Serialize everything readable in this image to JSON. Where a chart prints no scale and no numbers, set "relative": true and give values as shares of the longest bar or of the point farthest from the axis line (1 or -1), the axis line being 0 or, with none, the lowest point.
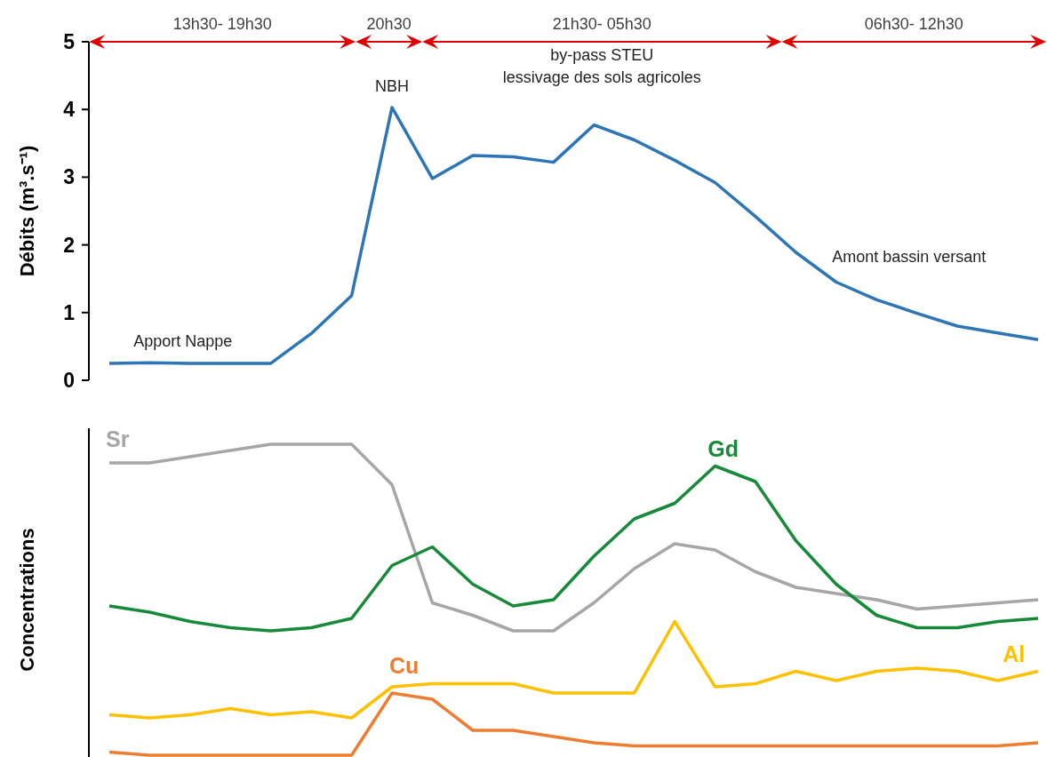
{
  "chart_data": [
    {
      "type": "line",
      "ylabel": "Débits (m³.s⁻¹)",
      "categories": [
        null,
        null,
        null,
        null,
        null,
        null,
        null,
        null,
        null,
        null,
        null,
        null,
        null,
        null,
        null,
        null,
        null,
        null,
        null,
        null,
        null,
        null,
        null,
        null
      ],
      "ylim": [
        0,
        5
      ],
      "yticks": [
        0,
        1,
        2,
        3,
        4,
        5
      ],
      "series": [
        {
          "color": "#2e75b6",
          "values": [
            0.25,
            0.26,
            0.25,
            0.25,
            0.25,
            0.69,
            1.25,
            4.03,
            2.98,
            3.32,
            3.3,
            3.22,
            3.77,
            3.55,
            3.25,
            2.92,
            2.42,
            1.89,
            1.45,
            1.19,
            0.99,
            0.8,
            0.7,
            0.6
          ]
        }
      ],
      "annotations": [
        "13h30- 19h30",
        "20h30",
        "21h30- 05h30",
        "06h30- 12h30",
        "NBH",
        "by-pass STEU\nlessivage des sols agricoles",
        "Apport Nappe",
        "Amont bassin versant"
      ]
    },
    {
      "type": "line",
      "relative": true,
      "ylabel": "Concentrations",
      "categories": [
        null,
        null,
        null,
        null,
        null,
        null,
        null,
        null,
        null,
        null,
        null,
        null,
        null,
        null,
        null,
        null,
        null,
        null,
        null,
        null,
        null,
        null,
        null,
        null
      ],
      "series": [
        {
          "name": "Sr",
          "color": "#a6a6a6",
          "values": [
            0.94,
            0.94,
            0.96,
            0.98,
            1.0,
            1.0,
            1.0,
            0.87,
            0.49,
            0.45,
            0.4,
            0.4,
            0.49,
            0.6,
            0.68,
            0.66,
            0.59,
            0.54,
            0.52,
            0.5,
            0.47,
            0.48,
            0.49,
            0.5
          ]
        },
        {
          "name": "Gd",
          "color": "#178a3a",
          "values": [
            0.48,
            0.46,
            0.43,
            0.41,
            0.4,
            0.41,
            0.44,
            0.61,
            0.67,
            0.55,
            0.48,
            0.5,
            0.64,
            0.76,
            0.81,
            0.93,
            0.88,
            0.69,
            0.55,
            0.45,
            0.41,
            0.41,
            0.43,
            0.44
          ]
        },
        {
          "name": "Al",
          "color": "#ffc000",
          "values": [
            0.13,
            0.12,
            0.13,
            0.15,
            0.13,
            0.14,
            0.12,
            0.22,
            0.23,
            0.23,
            0.23,
            0.2,
            0.2,
            0.2,
            0.43,
            0.22,
            0.23,
            0.27,
            0.24,
            0.27,
            0.28,
            0.27,
            0.24,
            0.27
          ]
        },
        {
          "name": "Cu",
          "color": "#ed7d31",
          "values": [
            0.01,
            0,
            0,
            0,
            0,
            0,
            0,
            0.2,
            0.18,
            0.08,
            0.08,
            0.06,
            0.04,
            0.03,
            0.03,
            0.03,
            0.03,
            0.03,
            0.03,
            0.03,
            0.03,
            0.03,
            0.03,
            0.04
          ]
        }
      ]
    }
  ]
}
